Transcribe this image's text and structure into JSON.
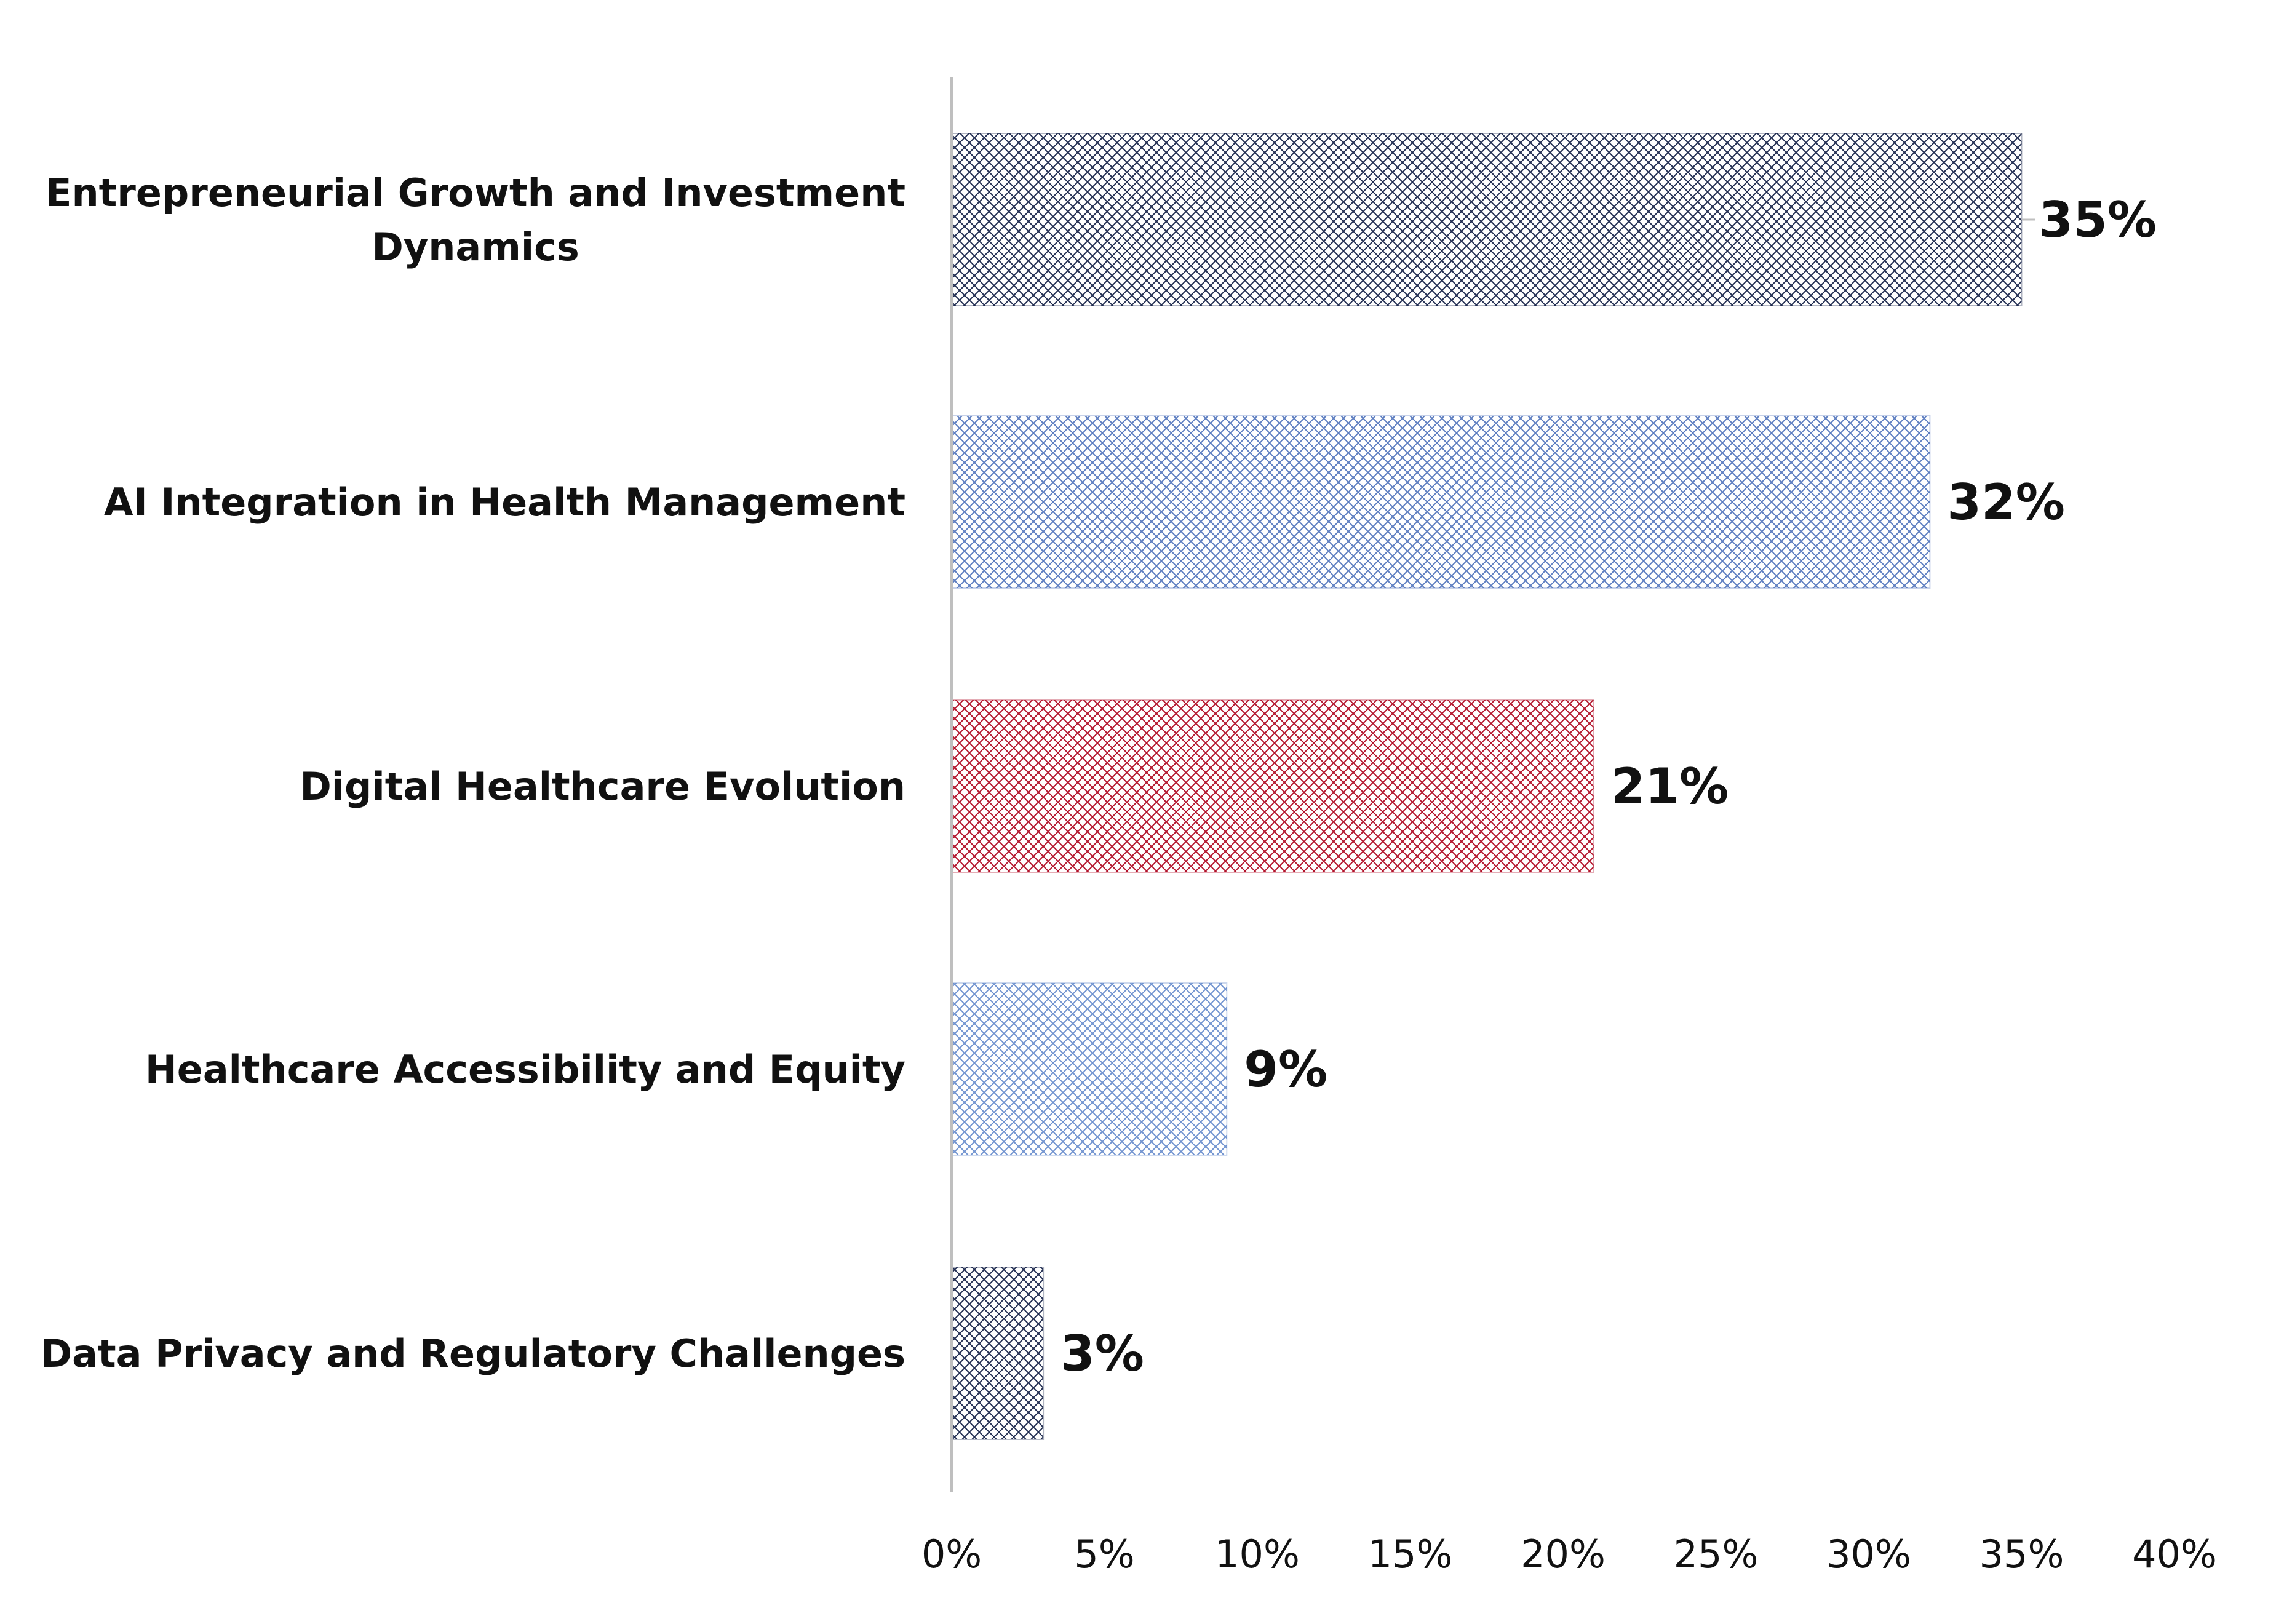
{
  "chart_data": {
    "type": "bar",
    "orientation": "horizontal",
    "title": "",
    "xlabel": "",
    "ylabel": "",
    "categories": [
      "Entrepreneurial Growth and Investment Dynamics",
      "AI Integration in Health Management",
      "Digital Healthcare Evolution",
      "Healthcare Accessibility and Equity",
      "Data Privacy and Regulatory Challenges"
    ],
    "category_lines": [
      [
        "Entrepreneurial Growth and Investment",
        "Dynamics"
      ],
      [
        "AI Integration in Health Management"
      ],
      [
        "Digital Healthcare Evolution"
      ],
      [
        "Healthcare Accessibility and Equity"
      ],
      [
        "Data Privacy and Regulatory Challenges"
      ]
    ],
    "values": [
      35,
      32,
      21,
      9,
      3
    ],
    "data_labels": [
      "35%",
      "32%",
      "21%",
      "9%",
      "3%"
    ],
    "bar_colors": [
      "#1f2b50",
      "#5b7cc0",
      "#b3122a",
      "#6f92cf",
      "#1f2b50"
    ],
    "bar_fill": "crosshatch",
    "xlim": [
      0,
      40
    ],
    "xticks": [
      0,
      5,
      10,
      15,
      20,
      25,
      30,
      35,
      40
    ],
    "xtick_labels": [
      "0%",
      "5%",
      "10%",
      "15%",
      "20%",
      "25%",
      "30%",
      "35%",
      "40%"
    ],
    "grid": false,
    "legend": "none",
    "axis_color": "#bfbfbf"
  }
}
